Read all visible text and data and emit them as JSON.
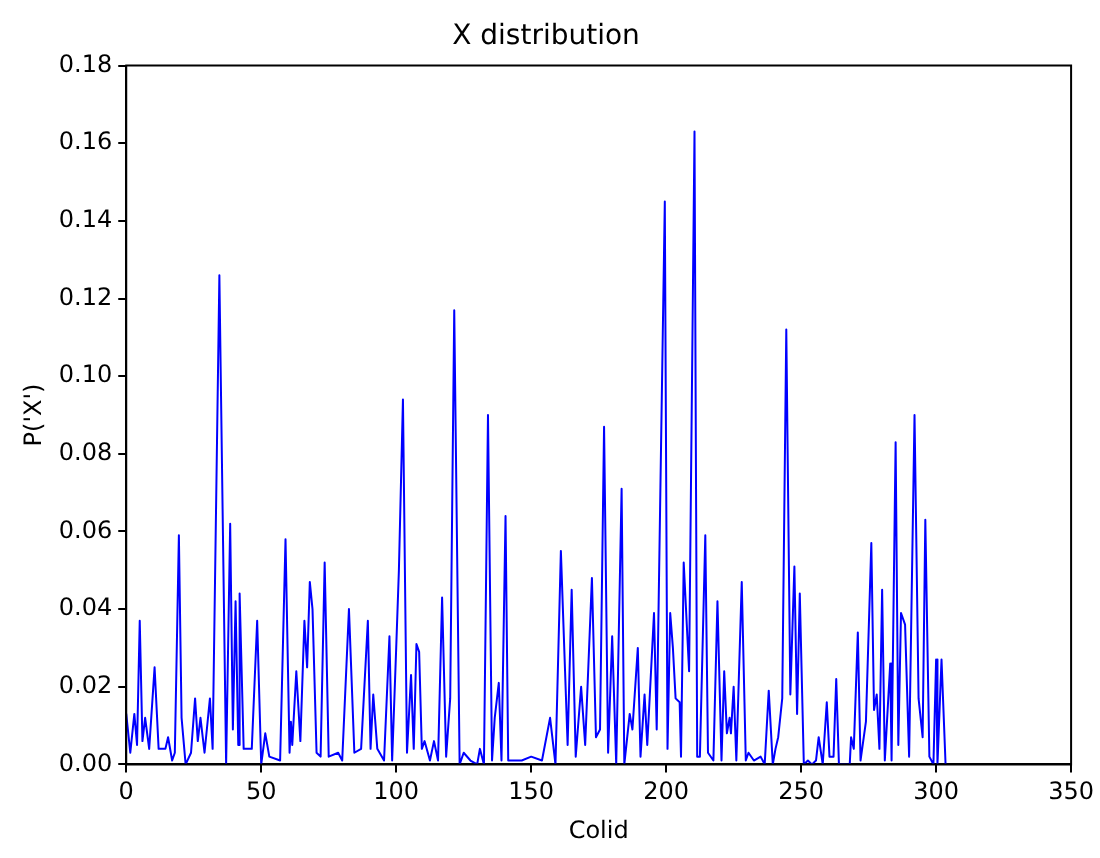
{
  "chart_data": {
    "type": "line",
    "title": "X distribution",
    "xlabel": "Colid",
    "ylabel": "P('X')",
    "xlim": [
      0,
      350
    ],
    "xticks": [
      0,
      50,
      100,
      150,
      200,
      250,
      300,
      350
    ],
    "ylim": [
      0,
      0.18
    ],
    "yticks": [
      {
        "value": 0,
        "label": "0.00"
      },
      {
        "value": 0.02,
        "label": "0.02"
      },
      {
        "value": 0.04,
        "label": "0.04"
      },
      {
        "value": 0.06,
        "label": "0.06"
      },
      {
        "value": 0.08,
        "label": "0.08"
      },
      {
        "value": 0.1,
        "label": "0.10"
      },
      {
        "value": 0.12,
        "label": "0.12"
      },
      {
        "value": 0.14,
        "label": "0.14"
      },
      {
        "value": 0.16,
        "label": "0.16"
      },
      {
        "value": 0.18,
        "label": "0.18"
      }
    ],
    "grid": false,
    "legend": false,
    "marker": "none",
    "line_style": "solid",
    "series": [
      {
        "color": "#0000ff",
        "x": [
          0,
          1.5,
          3,
          4,
          5,
          6,
          7,
          8.5,
          10.5,
          12,
          14.5,
          15.5,
          17,
          18,
          19.5,
          20.5,
          22,
          24,
          25.5,
          26.5,
          27.5,
          29,
          31,
          32,
          34.5,
          37,
          38.5,
          39.5,
          40.5,
          41.5,
          42,
          43.5,
          46.5,
          48.5,
          50,
          51.5,
          53,
          57,
          59,
          60.5,
          61,
          61.5,
          63,
          64.5,
          66,
          67,
          68,
          69,
          70.5,
          72,
          73.5,
          75,
          78.5,
          80,
          82.5,
          84.5,
          87,
          89.5,
          90.5,
          91.5,
          93,
          95.5,
          97.5,
          98.5,
          100,
          101,
          102.5,
          104,
          105.5,
          106.5,
          107.5,
          108.5,
          109.5,
          110.5,
          112.5,
          114,
          115.5,
          117,
          118.5,
          120,
          121.5,
          123.5,
          125,
          127.5,
          130,
          131,
          132.5,
          134,
          135.5,
          136.5,
          138,
          139,
          140.5,
          141.5,
          144,
          146.5,
          150,
          154,
          157,
          159,
          161,
          163.5,
          165,
          166.5,
          168.5,
          170,
          172.5,
          174,
          175.5,
          177,
          178.5,
          180,
          181.5,
          183.5,
          184.5,
          186.5,
          187.5,
          189.5,
          190.5,
          192,
          193,
          195.5,
          196.5,
          199.5,
          200.5,
          201.5,
          202.5,
          203.5,
          205,
          205.5,
          206.5,
          208.5,
          210.5,
          211.5,
          212.5,
          214.5,
          215.5,
          217.5,
          219,
          220.5,
          221.5,
          222.5,
          223.5,
          224,
          225,
          226,
          228,
          229.5,
          230.5,
          232.5,
          235,
          236.5,
          238,
          239.5,
          240.5,
          241.5,
          243,
          244.5,
          246,
          247.5,
          248.5,
          249.5,
          251,
          252.5,
          254,
          255.5,
          256.5,
          258,
          259.5,
          260.5,
          262,
          263,
          264,
          266.5,
          268,
          268.5,
          269.5,
          271,
          272,
          274,
          276,
          277,
          278,
          279,
          280,
          281,
          283,
          283.5,
          285,
          286,
          287,
          288.5,
          290,
          292,
          293.5,
          295,
          296,
          297.5,
          299,
          300,
          300.5,
          302,
          303.5
        ],
        "values": [
          0.013,
          0.003,
          0.013,
          0.005,
          0.037,
          0.006,
          0.012,
          0.004,
          0.025,
          0.004,
          0.004,
          0.007,
          0.001,
          0.003,
          0.059,
          0.012,
          0.0,
          0.003,
          0.017,
          0.006,
          0.012,
          0.003,
          0.017,
          0.004,
          0.126,
          0.0,
          0.062,
          0.009,
          0.042,
          0.005,
          0.044,
          0.004,
          0.004,
          0.037,
          0.0,
          0.008,
          0.002,
          0.001,
          0.058,
          0.003,
          0.011,
          0.005,
          0.024,
          0.006,
          0.037,
          0.025,
          0.047,
          0.04,
          0.003,
          0.002,
          0.052,
          0.002,
          0.003,
          0.001,
          0.04,
          0.003,
          0.004,
          0.037,
          0.004,
          0.018,
          0.004,
          0.001,
          0.033,
          0.001,
          0.03,
          0.05,
          0.094,
          0.003,
          0.023,
          0.004,
          0.031,
          0.029,
          0.004,
          0.006,
          0.001,
          0.006,
          0.001,
          0.043,
          0.002,
          0.017,
          0.117,
          0.0,
          0.003,
          0.001,
          0.0,
          0.004,
          0.0,
          0.09,
          0.001,
          0.012,
          0.021,
          0.001,
          0.064,
          0.001,
          0.001,
          0.001,
          0.002,
          0.001,
          0.012,
          0.0,
          0.055,
          0.005,
          0.045,
          0.002,
          0.02,
          0.005,
          0.048,
          0.007,
          0.009,
          0.087,
          0.003,
          0.033,
          0.0,
          0.071,
          0.0,
          0.013,
          0.009,
          0.03,
          0.002,
          0.018,
          0.005,
          0.039,
          0.009,
          0.145,
          0.004,
          0.039,
          0.03,
          0.017,
          0.016,
          0.002,
          0.052,
          0.024,
          0.163,
          0.002,
          0.002,
          0.059,
          0.003,
          0.001,
          0.042,
          0.001,
          0.024,
          0.008,
          0.012,
          0.008,
          0.02,
          0.001,
          0.047,
          0.001,
          0.003,
          0.001,
          0.002,
          0.0,
          0.019,
          0.0,
          0.004,
          0.007,
          0.017,
          0.112,
          0.018,
          0.051,
          0.013,
          0.044,
          0.0,
          0.001,
          0.0,
          0.001,
          0.007,
          0.0,
          0.016,
          0.002,
          0.002,
          0.022,
          0.0,
          0.0,
          0.0,
          0.007,
          0.004,
          0.034,
          0.001,
          0.011,
          0.057,
          0.014,
          0.018,
          0.004,
          0.045,
          0.001,
          0.026,
          0.001,
          0.083,
          0.005,
          0.039,
          0.036,
          0.002,
          0.09,
          0.017,
          0.007,
          0.063,
          0.002,
          0.0,
          0.027,
          0.0,
          0.027,
          0.0
        ]
      }
    ]
  }
}
